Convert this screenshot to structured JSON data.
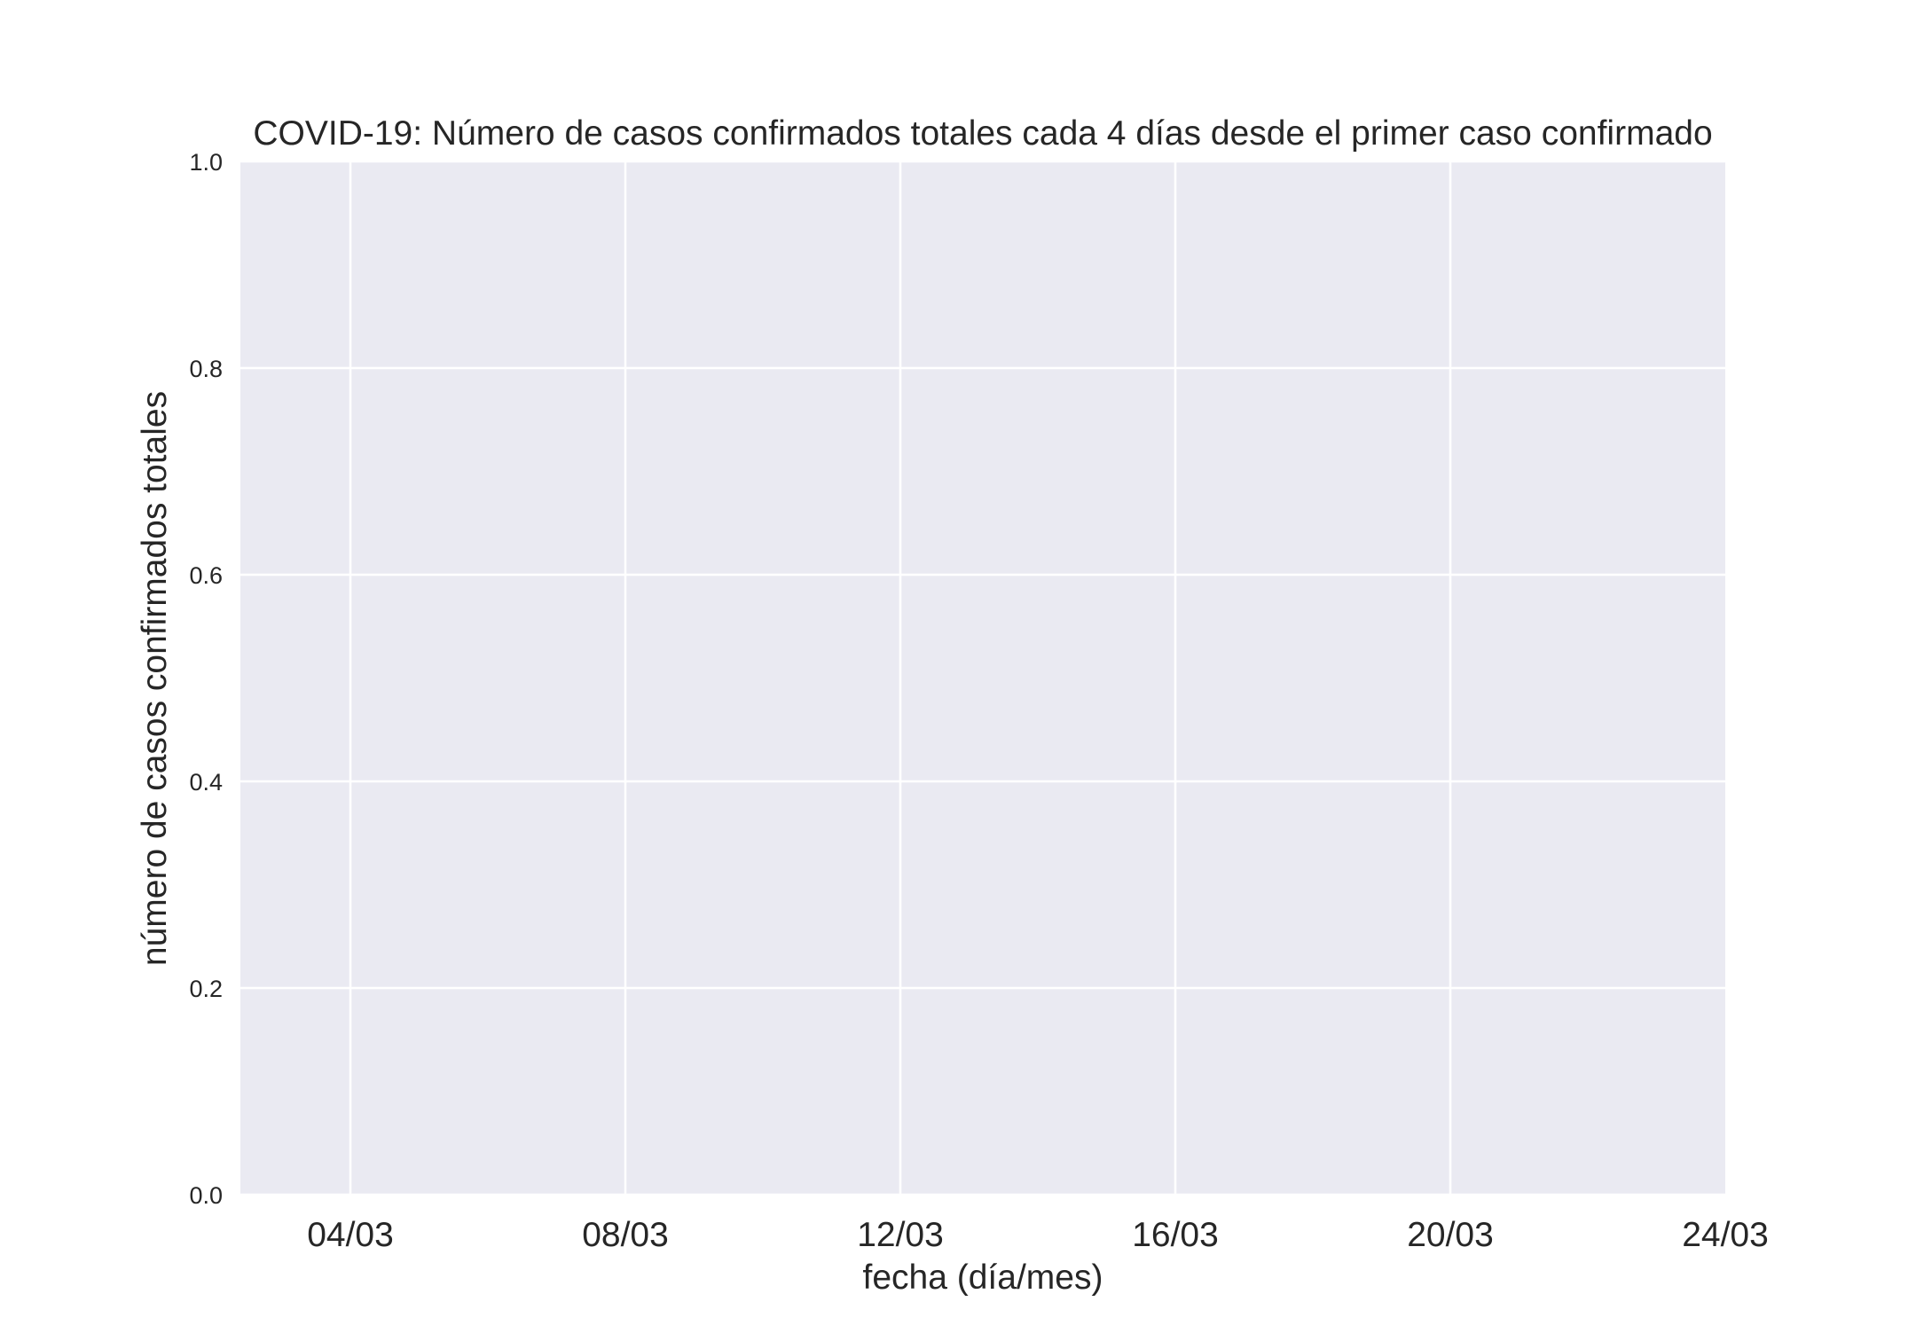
{
  "chart_data": {
    "type": "line",
    "title": "COVID-19: Número de casos confirmados totales cada 4 días desde el primer caso confirmado",
    "xlabel": "fecha (día/mes)",
    "ylabel": "número de casos confirmados totales",
    "x_tick_labels": [
      "04/03",
      "08/03",
      "12/03",
      "16/03",
      "20/03",
      "24/03"
    ],
    "x_tick_days": [
      4,
      8,
      12,
      16,
      20,
      24
    ],
    "xlim_days": [
      2.4,
      24
    ],
    "y_tick_labels": [
      "0.0",
      "0.2",
      "0.4",
      "0.6",
      "0.8",
      "1.0"
    ],
    "y_ticks": [
      0.0,
      0.2,
      0.4,
      0.6,
      0.8,
      1.0
    ],
    "ylim": [
      0,
      1
    ],
    "series": [],
    "grid": true,
    "colors": {
      "plot_background": "#eaeaf2",
      "grid": "#ffffff",
      "text": "#262626"
    }
  }
}
